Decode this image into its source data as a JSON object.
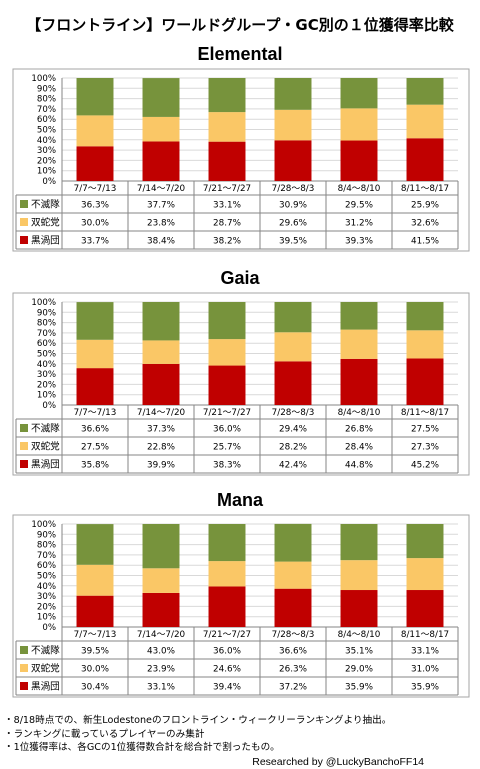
{
  "title": "【フロントライン】ワールドグループ・GC別の１位獲得率比較",
  "colors": {
    "green": "#77933C",
    "yellow": "#FAC766",
    "red": "#C00000",
    "grid": "#D9D9D9",
    "border": "#A6A6A6"
  },
  "chart_data": [
    {
      "type": "bar",
      "stacked": true,
      "title": "Elemental",
      "categories": [
        "7/7〜7/13",
        "7/14〜7/20",
        "7/21〜7/27",
        "7/28〜8/3",
        "8/4〜8/10",
        "8/11〜8/17"
      ],
      "ylim": [
        0,
        100
      ],
      "yticks": [
        "0%",
        "10%",
        "20%",
        "30%",
        "40%",
        "50%",
        "60%",
        "70%",
        "80%",
        "90%",
        "100%"
      ],
      "grid": true,
      "series": [
        {
          "name": "黒渦団",
          "color": "#C00000",
          "values": [
            33.7,
            38.4,
            38.2,
            39.5,
            39.3,
            41.5
          ],
          "labels": [
            "33.7%",
            "38.4%",
            "38.2%",
            "39.5%",
            "39.3%",
            "41.5%"
          ]
        },
        {
          "name": "双蛇党",
          "color": "#FAC766",
          "values": [
            30.0,
            23.8,
            28.7,
            29.6,
            31.2,
            32.6
          ],
          "labels": [
            "30.0%",
            "23.8%",
            "28.7%",
            "29.6%",
            "31.2%",
            "32.6%"
          ]
        },
        {
          "name": "不滅隊",
          "color": "#77933C",
          "values": [
            36.3,
            37.7,
            33.1,
            30.9,
            29.5,
            25.9
          ],
          "labels": [
            "36.3%",
            "37.7%",
            "33.1%",
            "30.9%",
            "29.5%",
            "25.9%"
          ]
        }
      ]
    },
    {
      "type": "bar",
      "stacked": true,
      "title": "Gaia",
      "categories": [
        "7/7〜7/13",
        "7/14〜7/20",
        "7/21〜7/27",
        "7/28〜8/3",
        "8/4〜8/10",
        "8/11〜8/17"
      ],
      "ylim": [
        0,
        100
      ],
      "yticks": [
        "0%",
        "10%",
        "20%",
        "30%",
        "40%",
        "50%",
        "60%",
        "70%",
        "80%",
        "90%",
        "100%"
      ],
      "grid": true,
      "series": [
        {
          "name": "黒渦団",
          "color": "#C00000",
          "values": [
            35.8,
            39.9,
            38.3,
            42.4,
            44.8,
            45.2
          ],
          "labels": [
            "35.8%",
            "39.9%",
            "38.3%",
            "42.4%",
            "44.8%",
            "45.2%"
          ]
        },
        {
          "name": "双蛇党",
          "color": "#FAC766",
          "values": [
            27.5,
            22.8,
            25.7,
            28.2,
            28.4,
            27.3
          ],
          "labels": [
            "27.5%",
            "22.8%",
            "25.7%",
            "28.2%",
            "28.4%",
            "27.3%"
          ]
        },
        {
          "name": "不滅隊",
          "color": "#77933C",
          "values": [
            36.6,
            37.3,
            36.0,
            29.4,
            26.8,
            27.5
          ],
          "labels": [
            "36.6%",
            "37.3%",
            "36.0%",
            "29.4%",
            "26.8%",
            "27.5%"
          ]
        }
      ]
    },
    {
      "type": "bar",
      "stacked": true,
      "title": "Mana",
      "categories": [
        "7/7〜7/13",
        "7/14〜7/20",
        "7/21〜7/27",
        "7/28〜8/3",
        "8/4〜8/10",
        "8/11〜8/17"
      ],
      "ylim": [
        0,
        100
      ],
      "yticks": [
        "0%",
        "10%",
        "20%",
        "30%",
        "40%",
        "50%",
        "60%",
        "70%",
        "80%",
        "90%",
        "100%"
      ],
      "grid": true,
      "series": [
        {
          "name": "黒渦団",
          "color": "#C00000",
          "values": [
            30.4,
            33.1,
            39.4,
            37.2,
            35.9,
            35.9
          ],
          "labels": [
            "30.4%",
            "33.1%",
            "39.4%",
            "37.2%",
            "35.9%",
            "35.9%"
          ]
        },
        {
          "name": "双蛇党",
          "color": "#FAC766",
          "values": [
            30.0,
            23.9,
            24.6,
            26.3,
            29.0,
            31.0
          ],
          "labels": [
            "30.0%",
            "23.9%",
            "24.6%",
            "26.3%",
            "29.0%",
            "31.0%"
          ]
        },
        {
          "name": "不滅隊",
          "color": "#77933C",
          "values": [
            39.5,
            43.0,
            36.0,
            36.6,
            35.1,
            33.1
          ],
          "labels": [
            "39.5%",
            "43.0%",
            "36.0%",
            "36.6%",
            "35.1%",
            "33.1%"
          ]
        }
      ]
    }
  ],
  "notes": [
    "・8/18時点での、新生Lodestoneのフロントライン・ウィークリーランキングより抽出。",
    "・ランキングに載っているプレイヤーのみ集計",
    "・1位獲得率は、各GCの1位獲得数合計を総合計で割ったもの。"
  ],
  "credit": "Researched by @LuckyBanchoFF14"
}
